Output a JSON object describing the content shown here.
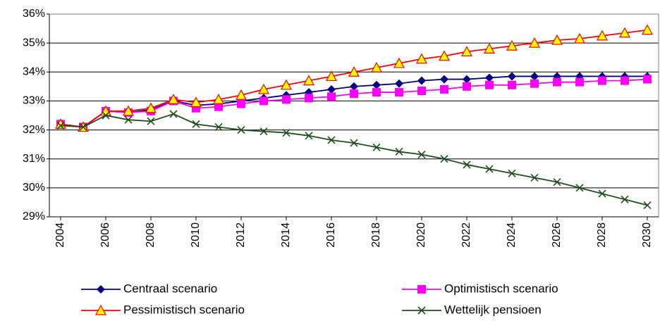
{
  "chart_data": {
    "type": "line",
    "x": [
      2004,
      2005,
      2006,
      2007,
      2008,
      2009,
      2010,
      2011,
      2012,
      2013,
      2014,
      2015,
      2016,
      2017,
      2018,
      2019,
      2020,
      2021,
      2022,
      2023,
      2024,
      2025,
      2026,
      2027,
      2028,
      2029,
      2030
    ],
    "xlim": [
      2003.5,
      2030.5
    ],
    "xticks": [
      2004,
      2006,
      2008,
      2010,
      2012,
      2014,
      2016,
      2018,
      2020,
      2022,
      2024,
      2026,
      2028,
      2030
    ],
    "ylim": [
      29,
      36
    ],
    "yticks": [
      {
        "value": 29,
        "label": "29%"
      },
      {
        "value": 30,
        "label": "30%"
      },
      {
        "value": 31,
        "label": "31%"
      },
      {
        "value": 32,
        "label": "32%"
      },
      {
        "value": 33,
        "label": "33%"
      },
      {
        "value": 34,
        "label": "34%"
      },
      {
        "value": 35,
        "label": "35%"
      },
      {
        "value": 36,
        "label": "36%"
      }
    ],
    "grid": true,
    "legend": "bottom",
    "series": [
      {
        "name": "Centraal scenario",
        "color": "#000080",
        "marker": "diamond",
        "values": [
          32.2,
          32.1,
          32.65,
          32.6,
          32.7,
          33.0,
          32.85,
          32.9,
          33.0,
          33.1,
          33.2,
          33.3,
          33.4,
          33.5,
          33.55,
          33.6,
          33.7,
          33.75,
          33.75,
          33.8,
          33.85,
          33.85,
          33.85,
          33.85,
          33.85,
          33.85,
          33.85
        ]
      },
      {
        "name": "Optimistisch scenario",
        "color": "#ff00ff",
        "marker": "square",
        "values": [
          32.2,
          32.1,
          32.65,
          32.6,
          32.65,
          33.0,
          32.75,
          32.8,
          32.9,
          33.0,
          33.05,
          33.1,
          33.15,
          33.25,
          33.3,
          33.3,
          33.35,
          33.4,
          33.5,
          33.55,
          33.55,
          33.6,
          33.65,
          33.65,
          33.7,
          33.7,
          33.75
        ]
      },
      {
        "name": "Pessimistisch scenario",
        "color": "#ff0000",
        "marker": "triangle",
        "marker_fill": "#ffff00",
        "values": [
          32.2,
          32.1,
          32.65,
          32.65,
          32.75,
          33.05,
          32.95,
          33.05,
          33.2,
          33.4,
          33.55,
          33.7,
          33.85,
          34.0,
          34.15,
          34.3,
          34.45,
          34.55,
          34.7,
          34.8,
          34.9,
          35.0,
          35.1,
          35.15,
          35.25,
          35.35,
          35.45
        ]
      },
      {
        "name": "Wettelijk pensioen",
        "color": "#1e4d1e",
        "marker": "x",
        "values": [
          32.15,
          32.1,
          32.5,
          32.35,
          32.3,
          32.55,
          32.2,
          32.1,
          32.0,
          31.95,
          31.9,
          31.8,
          31.65,
          31.55,
          31.4,
          31.25,
          31.15,
          31.0,
          30.8,
          30.65,
          30.5,
          30.35,
          30.2,
          30.0,
          29.8,
          29.6,
          29.4
        ]
      }
    ]
  }
}
